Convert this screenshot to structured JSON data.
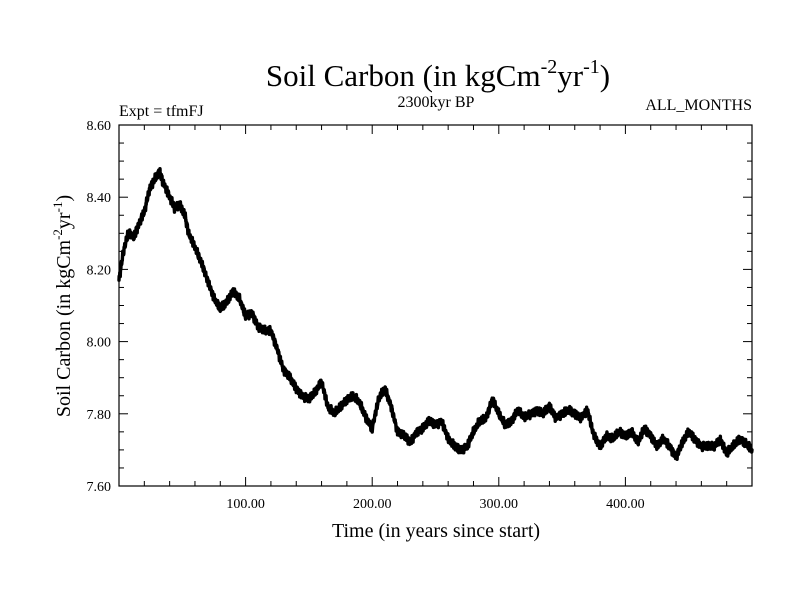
{
  "chart_data": {
    "type": "line",
    "title": {
      "prefix": "Soil Carbon (in kgCm",
      "sup1": "-2",
      "middle": "yr",
      "sup2": "-1",
      "suffix": ")"
    },
    "subtitle_left": "Expt = tfmFJ",
    "subtitle_center": "2300kyr BP",
    "subtitle_right": "ALL_MONTHS",
    "xlabel": "Time (in years since start)",
    "ylabel": {
      "prefix": "Soil Carbon (in kgCm",
      "sup1": "-2",
      "middle": "yr",
      "sup2": "-1",
      "suffix": ")"
    },
    "xlim": [
      0,
      500
    ],
    "ylim": [
      7.6,
      8.6
    ],
    "x_ticks": [
      100,
      200,
      300,
      400
    ],
    "x_tick_labels": [
      "100.00",
      "200.00",
      "300.00",
      "400.00"
    ],
    "y_ticks": [
      7.6,
      7.8,
      8.0,
      8.2,
      8.4,
      8.6
    ],
    "y_tick_labels": [
      "7.60",
      "7.80",
      "8.00",
      "8.20",
      "8.40",
      "8.60"
    ],
    "grid": false,
    "series": [
      {
        "name": "Soil Carbon",
        "color": "#000000",
        "noise_amplitude": 0.012,
        "x": [
          0,
          3,
          7,
          12,
          15,
          20,
          24,
          28,
          32,
          35,
          40,
          44,
          48,
          52,
          55,
          60,
          65,
          70,
          75,
          80,
          85,
          90,
          95,
          100,
          105,
          110,
          115,
          120,
          125,
          130,
          135,
          140,
          145,
          150,
          155,
          160,
          165,
          170,
          175,
          180,
          185,
          190,
          195,
          200,
          205,
          210,
          215,
          220,
          225,
          230,
          235,
          240,
          245,
          250,
          255,
          260,
          265,
          270,
          275,
          280,
          285,
          290,
          295,
          300,
          305,
          310,
          315,
          320,
          325,
          330,
          335,
          340,
          345,
          350,
          355,
          360,
          365,
          370,
          375,
          380,
          385,
          390,
          395,
          400,
          405,
          410,
          415,
          420,
          425,
          430,
          435,
          440,
          445,
          450,
          455,
          460,
          465,
          470,
          475,
          480,
          485,
          490,
          495,
          500
        ],
        "values": [
          8.17,
          8.24,
          8.3,
          8.29,
          8.32,
          8.36,
          8.42,
          8.45,
          8.47,
          8.44,
          8.4,
          8.37,
          8.38,
          8.35,
          8.3,
          8.26,
          8.22,
          8.17,
          8.12,
          8.09,
          8.11,
          8.14,
          8.12,
          8.07,
          8.08,
          8.04,
          8.03,
          8.03,
          7.98,
          7.92,
          7.9,
          7.87,
          7.85,
          7.84,
          7.86,
          7.89,
          7.82,
          7.8,
          7.82,
          7.84,
          7.85,
          7.83,
          7.79,
          7.76,
          7.84,
          7.87,
          7.82,
          7.75,
          7.74,
          7.72,
          7.75,
          7.76,
          7.78,
          7.77,
          7.78,
          7.73,
          7.71,
          7.7,
          7.71,
          7.75,
          7.78,
          7.79,
          7.84,
          7.8,
          7.77,
          7.78,
          7.81,
          7.79,
          7.8,
          7.81,
          7.8,
          7.82,
          7.79,
          7.8,
          7.81,
          7.8,
          7.79,
          7.81,
          7.74,
          7.71,
          7.74,
          7.73,
          7.75,
          7.74,
          7.75,
          7.72,
          7.76,
          7.74,
          7.71,
          7.73,
          7.71,
          7.68,
          7.72,
          7.75,
          7.73,
          7.71,
          7.71,
          7.71,
          7.73,
          7.69,
          7.71,
          7.73,
          7.72,
          7.7
        ]
      }
    ]
  }
}
